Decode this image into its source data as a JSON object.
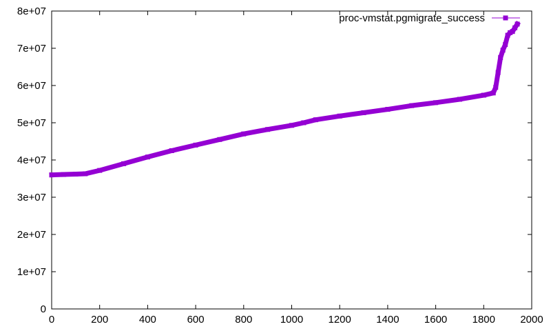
{
  "chart_data": {
    "type": "line",
    "title": "",
    "xlabel": "",
    "ylabel": "",
    "xlim": [
      0,
      2000
    ],
    "ylim": [
      0,
      80000000
    ],
    "x_ticks": [
      0,
      200,
      400,
      600,
      800,
      1000,
      1200,
      1400,
      1600,
      1800,
      2000
    ],
    "x_tick_labels": [
      "0",
      "200",
      "400",
      "600",
      "800",
      "1000",
      "1200",
      "1400",
      "1600",
      "1800",
      "2000"
    ],
    "y_ticks": [
      0,
      10000000,
      20000000,
      30000000,
      40000000,
      50000000,
      60000000,
      70000000,
      80000000
    ],
    "y_tick_labels": [
      "0",
      "1e+07",
      "2e+07",
      "3e+07",
      "4e+07",
      "5e+07",
      "6e+07",
      "7e+07",
      "8e+07"
    ],
    "grid": false,
    "legend_position": "top-right",
    "series": [
      {
        "name": "proc-vmstat.pgmigrate_success",
        "color": "#9400d3",
        "marker": "square",
        "x": [
          0,
          50,
          100,
          140,
          200,
          300,
          400,
          500,
          600,
          700,
          800,
          900,
          1000,
          1050,
          1100,
          1200,
          1300,
          1400,
          1500,
          1600,
          1700,
          1800,
          1840,
          1850,
          1860,
          1870,
          1880,
          1890,
          1900,
          1910,
          1920,
          1930,
          1940
        ],
        "y": [
          36000000,
          36100000,
          36200000,
          36300000,
          37200000,
          39000000,
          40800000,
          42500000,
          44000000,
          45500000,
          47000000,
          48200000,
          49300000,
          50000000,
          50800000,
          51800000,
          52700000,
          53600000,
          54600000,
          55400000,
          56300000,
          57400000,
          58000000,
          59500000,
          63500000,
          67500000,
          69500000,
          71000000,
          73500000,
          74200000,
          74500000,
          75500000,
          76500000
        ]
      }
    ]
  }
}
